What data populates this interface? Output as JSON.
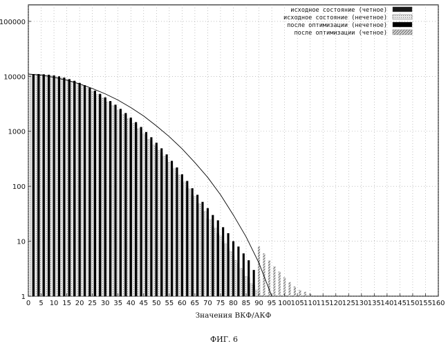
{
  "caption": "ФИГ. 6",
  "chart_data": {
    "type": "bar",
    "xlabel": "Значения ВКФ/АКФ",
    "ylabel": "",
    "xlim": [
      0,
      160
    ],
    "ylim": [
      1,
      200000
    ],
    "yscale": "log",
    "grid": true,
    "legend_position": "top-right",
    "x_ticks": [
      "0",
      "5",
      "10",
      "15",
      "20",
      "25",
      "30",
      "35",
      "40",
      "45",
      "50",
      "55",
      "60",
      "65",
      "70",
      "75",
      "80",
      "85",
      "90",
      "95",
      "100",
      "105",
      "110",
      "115",
      "120",
      "125",
      "130",
      "135",
      "140",
      "145",
      "150",
      "155",
      "160"
    ],
    "y_ticks": [
      "1",
      "10",
      "100",
      "1000",
      "10000",
      "100000"
    ],
    "series": [
      {
        "name": "исходное состояние (четное)",
        "color": "#1a1a1a",
        "pattern": "solid-dark",
        "x": [
          2,
          4,
          6,
          8,
          10,
          12,
          14,
          16,
          18,
          20,
          22,
          24,
          26,
          28,
          30,
          32,
          34,
          36,
          38,
          40,
          42,
          44,
          46,
          48,
          50,
          52,
          54,
          56,
          58,
          60,
          62,
          64,
          66,
          68,
          70,
          72,
          74,
          76,
          78,
          80,
          82,
          84,
          86,
          88,
          90,
          92,
          94,
          96,
          98,
          100,
          102,
          104,
          106,
          108,
          110,
          112,
          114,
          116,
          118,
          120,
          122,
          124,
          126,
          128,
          130,
          132,
          134,
          136,
          138,
          140,
          142,
          144,
          146,
          148,
          150
        ],
        "values": [
          11000,
          11000,
          10800,
          10500,
          10200,
          9800,
          9300,
          8700,
          8100,
          7400,
          6700,
          6000,
          5300,
          4600,
          4000,
          3400,
          2900,
          2400,
          2000,
          1650,
          1350,
          1080,
          860,
          680,
          530,
          410,
          310,
          235,
          175,
          130,
          95,
          70,
          50,
          36,
          26,
          19,
          14,
          10,
          7.5,
          5.5,
          4,
          3,
          2.2,
          1.6,
          1.2,
          1,
          1,
          1,
          1,
          1,
          1,
          1,
          1,
          1,
          1,
          1,
          1,
          1,
          1,
          1,
          1,
          1,
          1,
          1,
          1,
          1,
          1,
          1,
          1,
          1,
          1,
          1,
          1,
          1,
          1
        ]
      },
      {
        "name": "исходное состояние (нечетное)",
        "color": "#bbbbbb",
        "pattern": "light",
        "x": [
          1,
          3,
          5,
          7,
          9,
          11,
          13,
          15,
          17,
          19,
          21,
          23,
          25,
          27,
          29,
          31,
          33,
          35,
          37,
          39,
          41,
          43,
          45,
          47,
          49,
          51,
          53,
          55,
          57,
          59,
          61,
          63,
          65,
          67,
          69,
          71,
          73,
          75,
          77,
          79,
          81,
          83,
          85,
          87,
          89,
          91,
          93,
          95,
          97,
          99,
          101,
          103,
          105,
          107,
          109,
          111,
          113,
          115,
          117,
          119,
          121,
          123,
          125,
          127,
          129,
          131,
          133,
          135,
          137,
          139,
          141,
          143,
          145,
          147,
          149
        ],
        "values": [
          11000,
          11000,
          10900,
          10600,
          10300,
          9900,
          9400,
          8800,
          8200,
          7500,
          6800,
          6100,
          5400,
          4700,
          4050,
          3450,
          2950,
          2450,
          2050,
          1700,
          1400,
          1120,
          900,
          720,
          570,
          450,
          350,
          275,
          210,
          160,
          120,
          90,
          66,
          48,
          35,
          25,
          17.5,
          12.5,
          9,
          6.5,
          4.5,
          3.2,
          2.3,
          1.7,
          1.3,
          1,
          1,
          1,
          1,
          1,
          1,
          1,
          1,
          1,
          1,
          1,
          1,
          1,
          1,
          1,
          1,
          1,
          1,
          1,
          1,
          1,
          1,
          1,
          1,
          1,
          1,
          1,
          1,
          1,
          1
        ]
      },
      {
        "name": "после оптимизации (нечетное)",
        "color": "#000000",
        "pattern": "solid-black",
        "x": [
          2,
          4,
          6,
          8,
          10,
          12,
          14,
          16,
          18,
          20,
          22,
          24,
          26,
          28,
          30,
          32,
          34,
          36,
          38,
          40,
          42,
          44,
          46,
          48,
          50,
          52,
          54,
          56,
          58,
          60,
          62,
          64,
          66,
          68,
          70,
          72,
          74,
          76,
          78,
          80,
          82,
          84,
          86,
          88,
          90
        ],
        "values": [
          11000,
          11000,
          10900,
          10700,
          10400,
          10000,
          9500,
          8900,
          8300,
          7600,
          6900,
          6200,
          5500,
          4800,
          4150,
          3550,
          3050,
          2560,
          2150,
          1780,
          1470,
          1200,
          970,
          780,
          620,
          490,
          380,
          290,
          220,
          165,
          125,
          92,
          70,
          52,
          40,
          30,
          24,
          18,
          14,
          10,
          8,
          6,
          4.5,
          3,
          2
        ]
      },
      {
        "name": "после оптимизации (четное)",
        "color": "#888888",
        "pattern": "hatched",
        "x": [
          90,
          92,
          94,
          96,
          98,
          100,
          102,
          104,
          106,
          108,
          110,
          112,
          114,
          116,
          118,
          120,
          122,
          124,
          126,
          128,
          130,
          132,
          134,
          136,
          138,
          140,
          142,
          144,
          146,
          148,
          150
        ],
        "values": [
          8,
          6,
          4.5,
          3.5,
          2.8,
          2.2,
          1.8,
          1.5,
          1.3,
          1.2,
          1.1,
          1,
          1,
          1,
          1,
          1,
          1,
          1,
          1,
          1,
          1,
          1,
          1,
          1,
          1,
          1,
          1,
          1,
          1,
          1,
          1
        ]
      }
    ],
    "line": {
      "name": "",
      "x": [
        0,
        5,
        10,
        15,
        20,
        25,
        30,
        35,
        40,
        45,
        50,
        55,
        60,
        65,
        70,
        75,
        80,
        85,
        90,
        95
      ],
      "values": [
        11000,
        10500,
        9600,
        8500,
        7300,
        6000,
        4800,
        3700,
        2700,
        1900,
        1250,
        800,
        480,
        270,
        145,
        70,
        30,
        12,
        4,
        1
      ]
    }
  },
  "legend_labels": [
    "исходное состояние (четное)",
    "исходное состояние (нечетное)",
    "после оптимизации (нечетное)",
    "после оптимизации (четное)"
  ]
}
